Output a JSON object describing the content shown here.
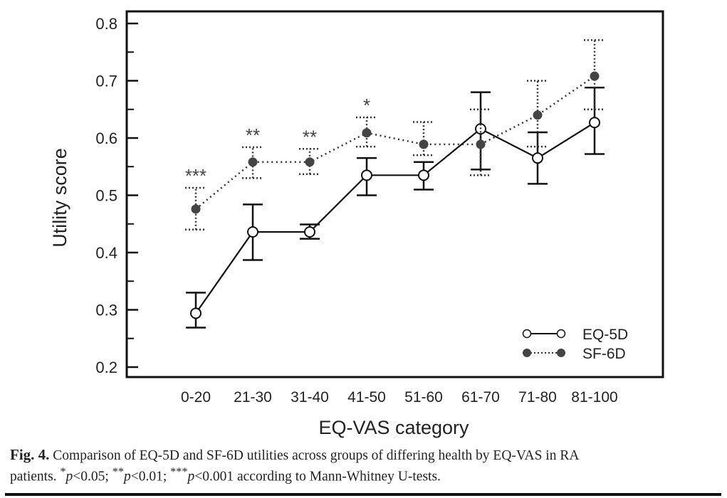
{
  "chart_data": {
    "type": "line",
    "title": "",
    "xlabel": "EQ-VAS category",
    "ylabel": "Utility score",
    "ylim": [
      0.2,
      0.8
    ],
    "yticks": [
      "0.2",
      "0.3",
      "0.4",
      "0.5",
      "0.6",
      "0.7",
      "0.8"
    ],
    "ytick_values": [
      0.2,
      0.3,
      0.4,
      0.5,
      0.6,
      0.7,
      0.8
    ],
    "categories": [
      "0-20",
      "21-30",
      "31-40",
      "41-50",
      "51-60",
      "61-70",
      "71-80",
      "81-100"
    ],
    "grid": false,
    "legend_position": "bottom-right",
    "series": [
      {
        "name": "EQ-5D",
        "marker": "open-circle",
        "line": "solid",
        "color": "#111111",
        "values": [
          0.294,
          0.436,
          0.436,
          0.535,
          0.535,
          0.616,
          0.565,
          0.627
        ],
        "error_low": [
          0.269,
          0.387,
          0.424,
          0.5,
          0.51,
          0.545,
          0.52,
          0.572
        ],
        "error_high": [
          0.33,
          0.484,
          0.449,
          0.565,
          0.558,
          0.68,
          0.61,
          0.688
        ]
      },
      {
        "name": "SF-6D",
        "marker": "filled-circle",
        "line": "dotted",
        "color": "#444444",
        "values": [
          0.476,
          0.558,
          0.558,
          0.609,
          0.589,
          0.589,
          0.64,
          0.708
        ],
        "error_low": [
          0.44,
          0.53,
          0.537,
          0.585,
          0.57,
          0.535,
          0.585,
          0.65
        ],
        "error_high": [
          0.513,
          0.584,
          0.581,
          0.636,
          0.628,
          0.65,
          0.7,
          0.771
        ]
      }
    ],
    "annotations": [
      {
        "category": "0-20",
        "text": "***"
      },
      {
        "category": "21-30",
        "text": "**"
      },
      {
        "category": "31-40",
        "text": "**"
      },
      {
        "category": "41-50",
        "text": "*"
      }
    ]
  },
  "caption": {
    "label": "Fig. 4.",
    "text_line1": " Comparison of EQ-5D and SF-6D utilities across groups of differing health by EQ-VAS in RA",
    "text_line2_prefix": "patients. ",
    "sig1_stars": "*",
    "sig1_p": "p",
    "sig1_rest": "<0.05; ",
    "sig2_stars": "**",
    "sig2_p": "p",
    "sig2_rest": "<0.01; ",
    "sig3_stars": "***",
    "sig3_p": "p",
    "sig3_rest": "<0.001 according to Mann-Whitney U-tests."
  }
}
